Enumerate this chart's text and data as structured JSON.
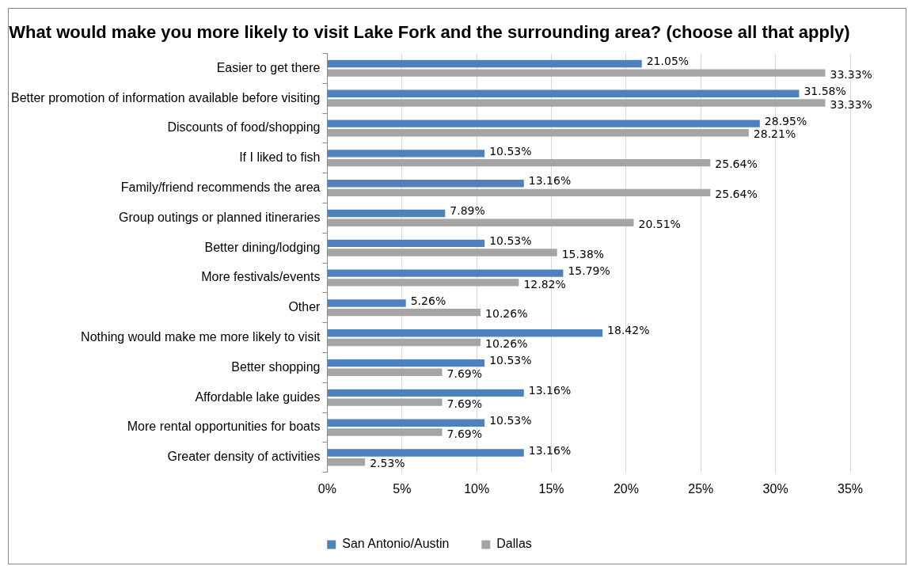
{
  "chart_data": {
    "type": "bar",
    "orientation": "horizontal",
    "title": "What would make you more likely to visit Lake Fork and the surrounding area? (choose all that apply)",
    "categories": [
      "Easier to get there",
      "Better promotion of information available before visiting",
      "Discounts of food/shopping",
      "If I liked to fish",
      "Family/friend recommends the area",
      "Group outings or planned itineraries",
      "Better dining/lodging",
      "More festivals/events",
      "Other",
      "Nothing would make me more likely to visit",
      "Better shopping",
      "Affordable lake guides",
      "More rental opportunities for boats",
      "Greater density of activities"
    ],
    "series": [
      {
        "name": "San Antonio/Austin",
        "color": "#4f81bd",
        "values": [
          21.05,
          31.58,
          28.95,
          10.53,
          13.16,
          7.89,
          10.53,
          15.79,
          5.26,
          18.42,
          10.53,
          13.16,
          10.53,
          13.16
        ],
        "value_labels": [
          "21.05%",
          "31.58%",
          "28.95%",
          "10.53%",
          "13.16%",
          "7.89%",
          "10.53%",
          "15.79%",
          "5.26%",
          "18.42%",
          "10.53%",
          "13.16%",
          "10.53%",
          "13.16%"
        ]
      },
      {
        "name": "Dallas",
        "color": "#a5a5a5",
        "values": [
          33.33,
          33.33,
          28.21,
          25.64,
          25.64,
          20.51,
          15.38,
          12.82,
          10.26,
          10.26,
          7.69,
          7.69,
          7.69,
          2.53
        ],
        "value_labels": [
          "33.33%",
          "33.33%",
          "28.21%",
          "25.64%",
          "25.64%",
          "20.51%",
          "15.38%",
          "12.82%",
          "10.26%",
          "10.26%",
          "7.69%",
          "7.69%",
          "7.69%",
          "2.53%"
        ]
      }
    ],
    "xlim": [
      0,
      35
    ],
    "xticks": [
      {
        "value": 0,
        "label": "0%"
      },
      {
        "value": 5,
        "label": "5%"
      },
      {
        "value": 10,
        "label": "10%"
      },
      {
        "value": 15,
        "label": "15%"
      },
      {
        "value": 20,
        "label": "20%"
      },
      {
        "value": 25,
        "label": "25%"
      },
      {
        "value": 30,
        "label": "30%"
      },
      {
        "value": 35,
        "label": "35%"
      }
    ],
    "grid": "x",
    "legend": "bottom"
  }
}
